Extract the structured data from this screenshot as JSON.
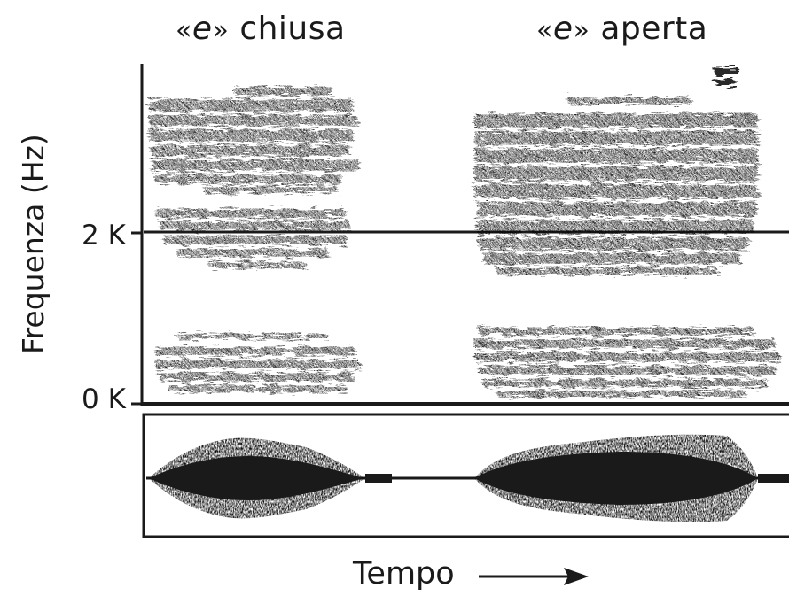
{
  "titles": {
    "left": {
      "open": "«",
      "vowel": "e",
      "close": "»",
      "word": " chiusa"
    },
    "right": {
      "open": "«",
      "vowel": "e",
      "close": "»",
      "word": " aperta"
    }
  },
  "y_axis": {
    "label": "Frequenza (Hz)",
    "ticks": [
      "2 K",
      "0 K"
    ]
  },
  "x_axis": {
    "label": "Tempo",
    "arrow": "→"
  },
  "colors": {
    "ink": "#1a1a1a",
    "paper": "#ffffff"
  }
}
